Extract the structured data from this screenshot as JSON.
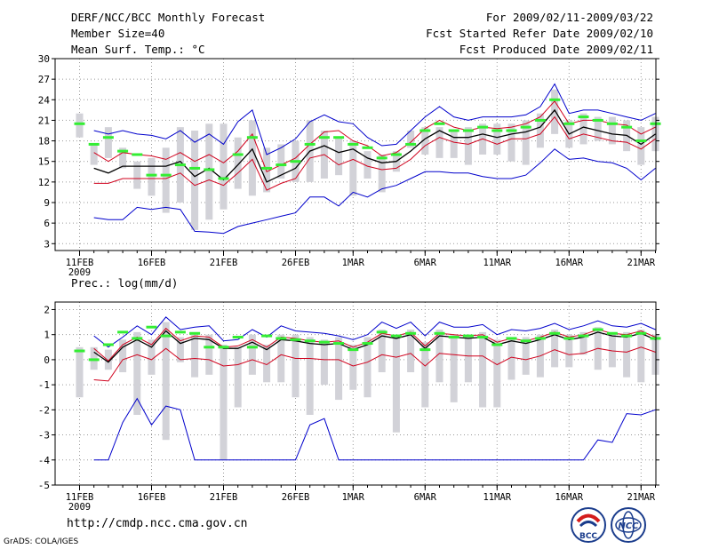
{
  "header": {
    "title": "DERF/NCC/BCC Monthly Forecast",
    "member_size": "Member Size=40",
    "variable": "Mean Surf. Temp.: °C",
    "period": "For 2009/02/11-2009/03/22",
    "fcst_started": "Fcst Started Refer Date 2009/02/10",
    "fcst_produced": "Fcst Produced Date 2009/02/11"
  },
  "footer": {
    "url": "http://cmdp.ncc.cma.gov.cn",
    "credit": "GrADS: COLA/IGES",
    "logo_bcc_text": "BCC",
    "logo_ncc_text": "NCC"
  },
  "colors": {
    "ensemble_mean": "#000000",
    "spread_upper_lower": "#d0001c",
    "max_min": "#0000cc",
    "observed_green": "#33ee33",
    "box": "#d2d2d8",
    "grid": "#9a9a9a"
  },
  "chart_data": [
    {
      "type": "line",
      "title": "Mean Surf. Temp.: °C",
      "xlabel": "",
      "ylabel": "°C",
      "ylim": [
        2,
        30
      ],
      "yticks": [
        3,
        6,
        9,
        12,
        15,
        18,
        21,
        24,
        27,
        30
      ],
      "xtick_labels": [
        "11FEB",
        "16FEB",
        "21FEB",
        "26FEB",
        "1MAR",
        "6MAR",
        "11MAR",
        "16MAR",
        "21MAR"
      ],
      "xtick_days": [
        1,
        6,
        11,
        16,
        20,
        25,
        30,
        35,
        40
      ],
      "year_label": "2009",
      "grid": true,
      "series": [
        {
          "name": "max",
          "color": "#0000cc",
          "values": [
            null,
            19.5,
            19.0,
            19.5,
            19.0,
            18.8,
            18.3,
            19.5,
            17.8,
            19.0,
            17.5,
            20.8,
            22.5,
            16.0,
            17.0,
            18.3,
            20.8,
            21.8,
            20.8,
            20.5,
            18.5,
            17.3,
            17.5,
            19.5,
            21.5,
            23.0,
            21.5,
            21.0,
            21.5,
            21.5,
            21.5,
            21.8,
            23.0,
            26.3,
            22.0,
            22.5,
            22.5,
            22.0,
            21.5,
            21.0,
            22.0
          ]
        },
        {
          "name": "upper",
          "color": "#d0001c",
          "values": [
            null,
            16.3,
            15.0,
            16.3,
            16.0,
            15.8,
            15.3,
            16.3,
            15.0,
            16.0,
            14.8,
            16.5,
            19.0,
            13.5,
            14.5,
            15.5,
            17.5,
            19.3,
            19.5,
            18.0,
            17.3,
            15.8,
            16.3,
            17.8,
            19.8,
            21.0,
            20.0,
            19.5,
            20.0,
            19.8,
            20.0,
            20.5,
            21.5,
            23.8,
            20.5,
            21.0,
            21.0,
            20.5,
            20.3,
            19.0,
            20.0
          ]
        },
        {
          "name": "mean",
          "color": "#000000",
          "values": [
            null,
            14.0,
            13.3,
            14.3,
            14.3,
            14.3,
            14.3,
            15.0,
            12.8,
            14.0,
            12.3,
            14.5,
            16.8,
            12.0,
            13.0,
            14.0,
            16.5,
            17.3,
            16.3,
            16.8,
            15.5,
            14.8,
            15.0,
            16.5,
            18.3,
            19.5,
            18.5,
            18.5,
            19.0,
            18.5,
            19.0,
            19.3,
            20.0,
            22.5,
            19.0,
            20.0,
            19.5,
            19.0,
            18.8,
            17.5,
            19.0
          ]
        },
        {
          "name": "lower",
          "color": "#d0001c",
          "values": [
            null,
            11.8,
            11.8,
            12.5,
            12.5,
            12.5,
            12.5,
            13.3,
            11.5,
            12.3,
            11.5,
            13.3,
            15.3,
            10.8,
            11.8,
            12.5,
            15.5,
            16.0,
            14.5,
            15.3,
            14.3,
            13.8,
            14.0,
            15.3,
            17.3,
            18.5,
            17.8,
            17.5,
            18.3,
            17.5,
            18.3,
            18.3,
            19.0,
            21.5,
            18.3,
            19.0,
            18.5,
            18.0,
            17.8,
            16.8,
            18.3
          ]
        },
        {
          "name": "min",
          "color": "#0000cc",
          "values": [
            null,
            6.8,
            6.5,
            6.5,
            8.3,
            8.0,
            8.3,
            8.0,
            4.8,
            4.7,
            4.5,
            5.5,
            6.0,
            6.5,
            7.0,
            7.5,
            9.8,
            9.8,
            8.5,
            10.5,
            9.8,
            11.0,
            11.5,
            12.5,
            13.5,
            13.5,
            13.3,
            13.3,
            12.8,
            12.5,
            12.5,
            13.0,
            14.8,
            16.8,
            15.3,
            15.5,
            15.0,
            14.8,
            14.0,
            12.3,
            14.0
          ]
        }
      ],
      "boxes": {
        "top": [
          22.0,
          17.5,
          20.0,
          17.0,
          15.0,
          15.5,
          17.0,
          20.0,
          19.5,
          20.5,
          20.5,
          18.5,
          21.0,
          17.0,
          17.5,
          18.0,
          21.0,
          19.5,
          18.5,
          18.0,
          16.5,
          16.0,
          16.5,
          19.5,
          20.0,
          20.0,
          19.5,
          20.0,
          20.5,
          20.5,
          20.5,
          21.0,
          22.0,
          25.5,
          21.0,
          22.0,
          21.5,
          21.5,
          21.0,
          20.0,
          21.5
        ],
        "bottom": [
          18.5,
          14.5,
          15.5,
          14.0,
          11.0,
          10.0,
          7.5,
          9.0,
          5.0,
          6.5,
          8.0,
          11.0,
          10.0,
          10.5,
          12.5,
          12.0,
          12.0,
          12.5,
          13.0,
          10.0,
          12.5,
          10.5,
          13.5,
          17.0,
          16.0,
          15.5,
          15.5,
          14.5,
          16.0,
          16.0,
          15.0,
          14.5,
          17.0,
          19.0,
          17.0,
          17.5,
          18.0,
          17.5,
          16.5,
          14.5,
          16.5
        ]
      },
      "observed": [
        20.5,
        17.5,
        18.5,
        16.5,
        16.0,
        13.0,
        13.0,
        14.5,
        14.0,
        13.8,
        12.5,
        16.0,
        18.5,
        14.0,
        14.5,
        15.0,
        17.5,
        18.5,
        18.5,
        17.5,
        17.0,
        15.5,
        16.0,
        17.5,
        19.5,
        20.5,
        19.5,
        19.5,
        20.0,
        19.5,
        19.5,
        20.0,
        21.0,
        24.0,
        20.5,
        21.5,
        21.0,
        20.5,
        20.0,
        18.0,
        20.5
      ]
    },
    {
      "type": "line",
      "title": "Prec.: log(mm/d)",
      "xlabel": "",
      "ylabel": "log(mm/d)",
      "ylim": [
        -5,
        2.3
      ],
      "yticks": [
        -5,
        -4,
        -3,
        -2,
        -1,
        0,
        1,
        2
      ],
      "xtick_labels": [
        "11FEB",
        "16FEB",
        "21FEB",
        "26FEB",
        "1MAR",
        "6MAR",
        "11MAR",
        "16MAR",
        "21MAR"
      ],
      "xtick_days": [
        1,
        6,
        11,
        16,
        20,
        25,
        30,
        35,
        40
      ],
      "year_label": "2009",
      "grid": true,
      "series": [
        {
          "name": "max",
          "color": "#0000cc",
          "values": [
            null,
            0.95,
            0.5,
            0.9,
            1.35,
            1.0,
            1.7,
            1.2,
            1.3,
            1.35,
            0.75,
            0.8,
            1.2,
            0.9,
            1.35,
            1.15,
            1.1,
            1.05,
            0.95,
            0.8,
            1.0,
            1.5,
            1.25,
            1.5,
            0.95,
            1.5,
            1.3,
            1.3,
            1.4,
            1.0,
            1.2,
            1.15,
            1.25,
            1.45,
            1.2,
            1.35,
            1.55,
            1.35,
            1.3,
            1.45,
            1.2
          ]
        },
        {
          "name": "upper",
          "color": "#d0001c",
          "values": [
            null,
            0.45,
            -0.05,
            0.6,
            0.9,
            0.6,
            1.25,
            0.75,
            0.95,
            0.9,
            0.5,
            0.55,
            0.8,
            0.5,
            0.9,
            0.85,
            0.75,
            0.7,
            0.75,
            0.5,
            0.7,
            1.05,
            0.95,
            1.1,
            0.55,
            1.05,
            1.0,
            0.95,
            1.0,
            0.7,
            0.85,
            0.75,
            0.9,
            1.1,
            0.9,
            1.0,
            1.2,
            1.05,
            1.0,
            1.15,
            0.9
          ]
        },
        {
          "name": "mean",
          "color": "#000000",
          "values": [
            null,
            0.3,
            -0.1,
            0.5,
            0.8,
            0.5,
            1.15,
            0.65,
            0.85,
            0.8,
            0.45,
            0.45,
            0.7,
            0.4,
            0.8,
            0.75,
            0.65,
            0.6,
            0.65,
            0.4,
            0.6,
            0.95,
            0.85,
            1.0,
            0.45,
            0.95,
            0.9,
            0.85,
            0.9,
            0.6,
            0.75,
            0.65,
            0.8,
            1.0,
            0.8,
            0.9,
            1.1,
            0.95,
            0.9,
            1.05,
            0.8
          ]
        },
        {
          "name": "lower",
          "color": "#d0001c",
          "values": [
            null,
            -0.8,
            -0.85,
            0.0,
            0.2,
            0.0,
            0.45,
            0.0,
            0.05,
            0.0,
            -0.25,
            -0.2,
            0.0,
            -0.2,
            0.2,
            0.05,
            0.05,
            0.0,
            0.0,
            -0.25,
            -0.1,
            0.2,
            0.1,
            0.25,
            -0.25,
            0.25,
            0.2,
            0.15,
            0.15,
            -0.2,
            0.1,
            0.0,
            0.15,
            0.4,
            0.2,
            0.25,
            0.45,
            0.35,
            0.3,
            0.5,
            0.3
          ]
        },
        {
          "name": "min",
          "color": "#0000cc",
          "values": [
            null,
            -4.0,
            -4.0,
            -2.5,
            -1.55,
            -2.6,
            -1.85,
            -2.0,
            -4.0,
            -4.0,
            -4.0,
            -4.0,
            -4.0,
            -4.0,
            -4.0,
            -4.0,
            -2.6,
            -2.35,
            -4.0,
            -4.0,
            -4.0,
            -4.0,
            -4.0,
            -4.0,
            -4.0,
            -4.0,
            -4.0,
            -4.0,
            -4.0,
            -4.0,
            -4.0,
            -4.0,
            -4.0,
            -4.0,
            -4.0,
            -4.0,
            -3.2,
            -3.3,
            -2.15,
            -2.2,
            -2.0
          ]
        }
      ],
      "boxes": {
        "top": [
          0.5,
          0.5,
          0.4,
          0.8,
          1.1,
          0.8,
          1.5,
          0.9,
          1.0,
          1.0,
          0.6,
          0.5,
          1.0,
          0.6,
          1.0,
          1.0,
          0.9,
          0.8,
          0.9,
          0.6,
          0.9,
          1.2,
          1.0,
          1.2,
          0.7,
          1.2,
          1.0,
          1.0,
          1.1,
          0.8,
          0.9,
          0.9,
          1.0,
          1.2,
          1.0,
          1.1,
          1.3,
          1.1,
          1.1,
          1.2,
          1.0
        ],
        "bottom": [
          -1.5,
          -0.4,
          -0.4,
          -0.5,
          -2.2,
          -0.6,
          -3.2,
          -0.1,
          -0.7,
          -0.6,
          -4.0,
          -1.9,
          -0.6,
          -0.9,
          -0.9,
          -1.5,
          -2.2,
          -1.0,
          -1.6,
          -1.2,
          -1.5,
          -0.5,
          -2.9,
          -0.5,
          -1.9,
          -0.9,
          -1.7,
          -0.9,
          -1.9,
          -1.9,
          -0.8,
          -0.6,
          -0.7,
          -0.3,
          -0.3,
          0.2,
          -0.4,
          -0.3,
          -0.7,
          -0.9,
          -0.6
        ]
      },
      "observed": [
        0.35,
        0.0,
        0.6,
        1.1,
        0.85,
        1.3,
        0.95,
        1.1,
        1.05,
        0.5,
        0.5,
        0.9,
        0.5,
        0.95,
        0.85,
        0.8,
        0.75,
        0.7,
        0.65,
        0.4,
        0.65,
        1.1,
        0.95,
        1.05,
        0.4,
        1.05,
        0.9,
        0.95,
        0.9,
        0.6,
        0.85,
        0.75,
        0.85,
        1.05,
        0.85,
        0.95,
        1.2,
        1.05,
        0.95,
        1.05,
        0.85
      ]
    }
  ]
}
